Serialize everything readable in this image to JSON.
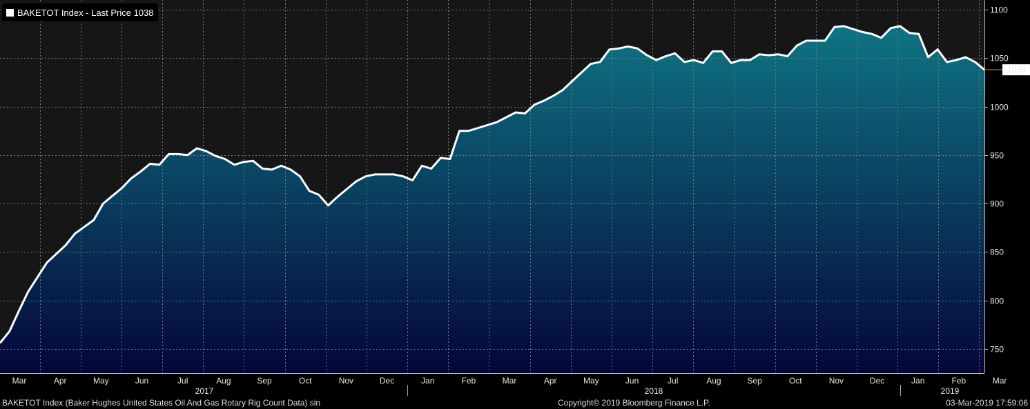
{
  "legend": {
    "text": "BAKETOT Index - Last Price 1038"
  },
  "footer": {
    "left": "BAKETOT Index (Baker Hughes United States Oil And Gas Rotary Rig Count Data) sin",
    "center": "Copyright© 2019 Bloomberg Finance L.P.",
    "right": "03-Mar-2019 17:59:06"
  },
  "colors": {
    "line": "#ffffff",
    "fill_top": "#0e7482",
    "fill_bottom": "#04063a",
    "background": "#161616",
    "last_price": "#e09a2a"
  },
  "chart_data": {
    "type": "area",
    "title": "",
    "xlabel": "",
    "ylabel": "",
    "ylim": [
      725,
      1110
    ],
    "yticks": [
      750,
      800,
      850,
      900,
      950,
      1000,
      1050,
      1100
    ],
    "month_ticks": [
      "Mar",
      "Apr",
      "May",
      "Jun",
      "Jul",
      "Aug",
      "Sep",
      "Oct",
      "Nov",
      "Dec",
      "Jan",
      "Feb",
      "Mar",
      "Apr",
      "May",
      "Jun",
      "Jul",
      "Aug",
      "Sep",
      "Oct",
      "Nov",
      "Dec",
      "Jan",
      "Feb",
      "Mar"
    ],
    "years": [
      "2017",
      "2018",
      "2019"
    ],
    "last_value": 1038,
    "last_label": "1038",
    "series": [
      {
        "values": [
          756,
          768,
          789,
          809,
          824,
          839,
          848,
          857,
          869,
          876,
          883,
          900,
          908,
          916,
          926,
          933,
          941,
          940,
          951,
          951,
          950,
          957,
          954,
          949,
          946,
          940,
          943,
          944,
          936,
          935,
          939,
          935,
          928,
          913,
          909,
          898,
          907,
          915,
          923,
          928,
          930,
          930,
          930,
          928,
          924,
          939,
          936,
          947,
          946,
          975,
          975,
          978,
          981,
          984,
          989,
          994,
          993,
          1002,
          1006,
          1011,
          1017,
          1026,
          1035,
          1044,
          1046,
          1059,
          1060,
          1062,
          1060,
          1053,
          1048,
          1052,
          1055,
          1046,
          1048,
          1045,
          1057,
          1057,
          1045,
          1048,
          1048,
          1054,
          1053,
          1054,
          1052,
          1063,
          1068,
          1068,
          1068,
          1082,
          1083,
          1080,
          1077,
          1075,
          1071,
          1081,
          1083,
          1076,
          1075,
          1051,
          1059,
          1046,
          1048,
          1051,
          1046,
          1038
        ]
      }
    ]
  }
}
